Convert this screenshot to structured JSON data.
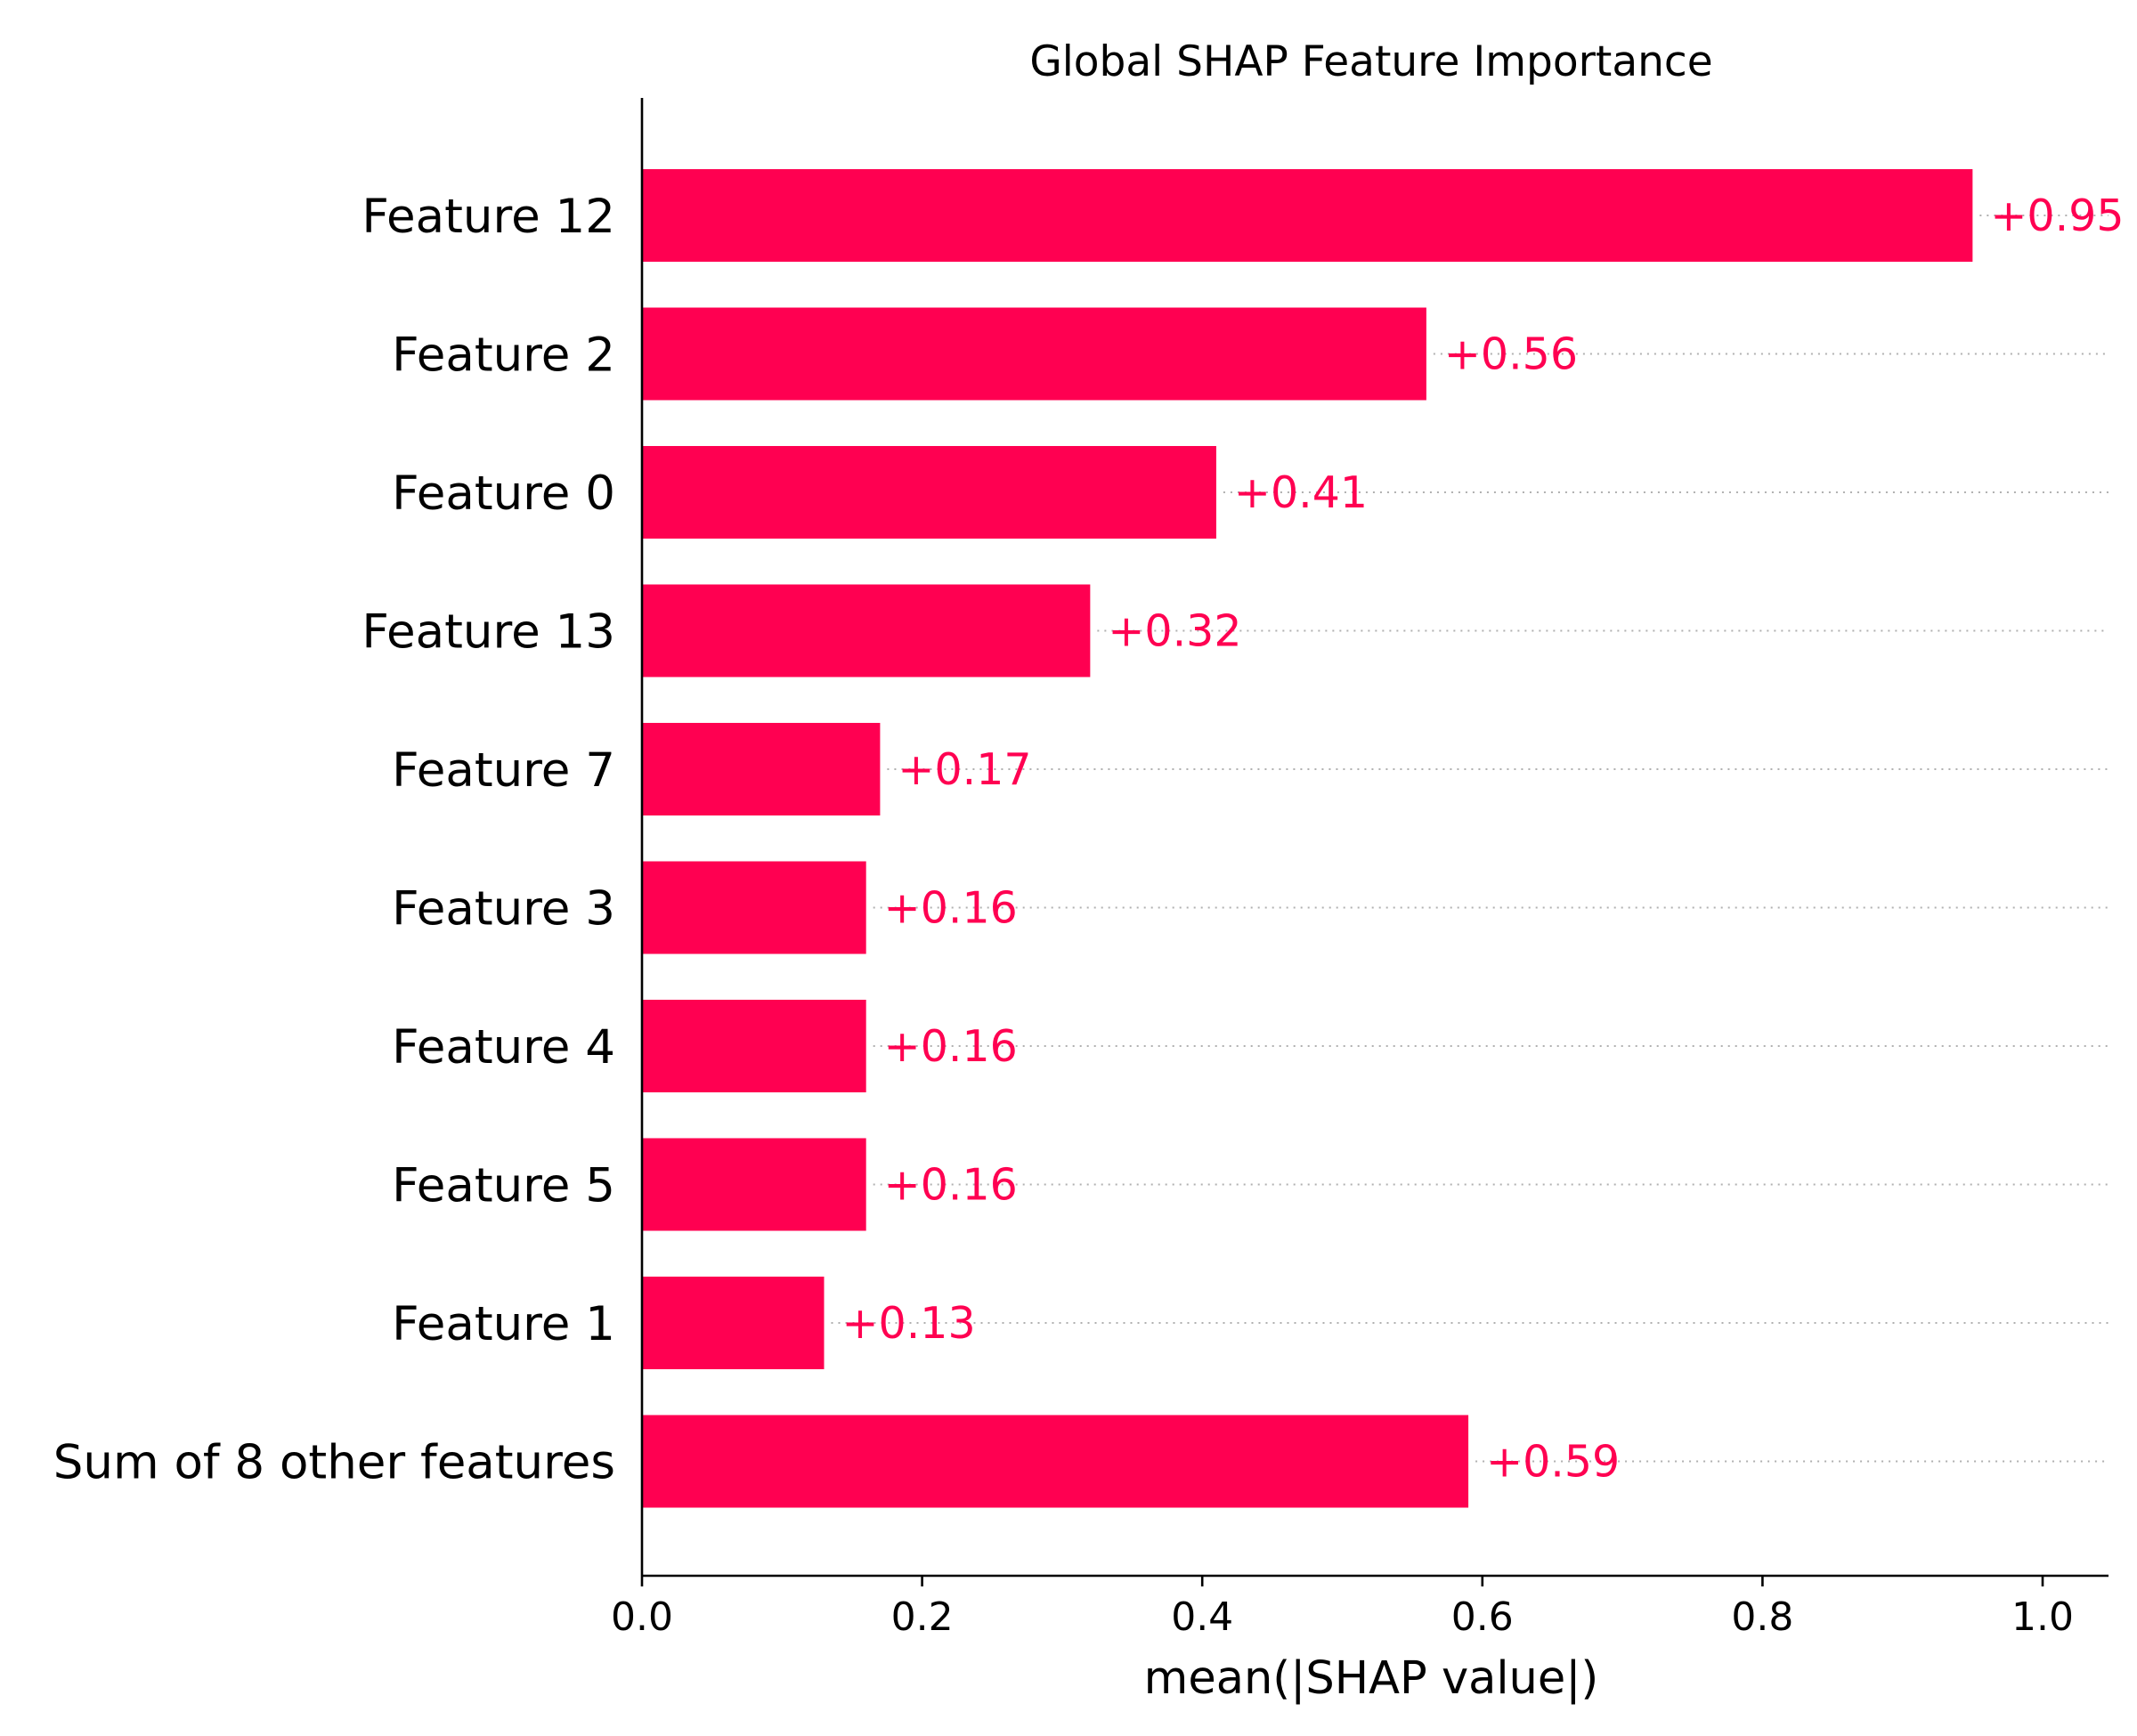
{
  "chart_data": {
    "type": "bar",
    "orientation": "horizontal",
    "title": "Global SHAP Feature Importance",
    "xlabel": "mean(|SHAP value|)",
    "ylabel": "",
    "xlim": [
      0,
      1.05
    ],
    "xticks": [
      "0.0",
      "0.2",
      "0.4",
      "0.6",
      "0.8",
      "1.0"
    ],
    "xtick_values": [
      0.0,
      0.2,
      0.4,
      0.6,
      0.8,
      1.0
    ],
    "categories": [
      "Feature 12",
      "Feature 2",
      "Feature 0",
      "Feature 13",
      "Feature 7",
      "Feature 3",
      "Feature 4",
      "Feature 5",
      "Feature 1",
      "Sum of 8 other features"
    ],
    "values": [
      0.95,
      0.56,
      0.41,
      0.32,
      0.17,
      0.16,
      0.16,
      0.16,
      0.13,
      0.59
    ],
    "value_labels": [
      "+0.95",
      "+0.56",
      "+0.41",
      "+0.32",
      "+0.17",
      "+0.16",
      "+0.16",
      "+0.16",
      "+0.13",
      "+0.59"
    ],
    "bar_color": "#ff0051",
    "guide_line_color": "#b0b0b0",
    "grid": false,
    "legend": "none"
  }
}
